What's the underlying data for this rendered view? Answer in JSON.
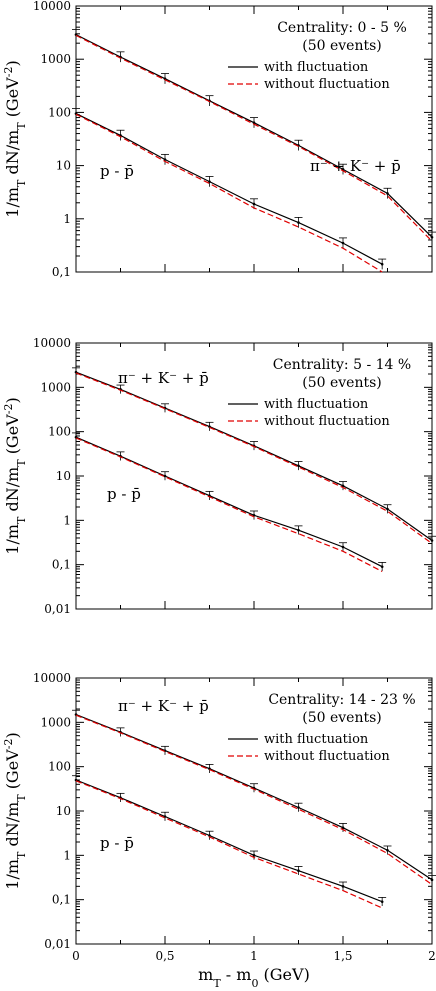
{
  "figure": {
    "xlabel": "m_T - m_0 (GeV)",
    "ylabel": "1/m_T dN/m_T (GeV^-2)",
    "legend": {
      "solid": "with fluctuation",
      "dashed": "without fluctuation"
    },
    "colors": {
      "solid": "#000000",
      "dashed": "#e00000",
      "error": "#000000"
    }
  },
  "chart_data": [
    {
      "type": "line",
      "title": "Centrality: 0 - 5 %",
      "subtitle": "(50 events)",
      "xlim": [
        0,
        2
      ],
      "ylim": [
        0.1,
        10000
      ],
      "yscale": "log",
      "xticks": [],
      "yticks": [
        "0,1",
        "1",
        "10",
        "100",
        "1000",
        "10000"
      ],
      "legend_position": "top-right",
      "series": [
        {
          "name": "with fluctuation",
          "curve": "π⁻ + K⁻ + p̄",
          "x": [
            0,
            0.25,
            0.5,
            0.75,
            1.0,
            1.25,
            1.5,
            1.75,
            2.0
          ],
          "y": [
            2900,
            1100,
            430,
            165,
            64,
            24,
            8.5,
            3.0,
            0.45
          ]
        },
        {
          "name": "without fluctuation",
          "curve": "π⁻ + K⁻ + p̄",
          "x": [
            0,
            0.25,
            0.5,
            0.75,
            1.0,
            1.25,
            1.5,
            1.75,
            2.0
          ],
          "y": [
            2800,
            1050,
            410,
            160,
            60,
            23,
            8.0,
            2.7,
            0.38
          ]
        },
        {
          "name": "with fluctuation",
          "curve": "p - p̄",
          "x": [
            0,
            0.25,
            0.5,
            0.75,
            1.0,
            1.25,
            1.5,
            1.72
          ],
          "y": [
            95,
            37,
            13,
            5.0,
            1.9,
            0.85,
            0.35,
            0.14
          ]
        },
        {
          "name": "without fluctuation",
          "curve": "p - p̄",
          "x": [
            0,
            0.25,
            0.5,
            0.75,
            1.0,
            1.25,
            1.5,
            1.72
          ],
          "y": [
            92,
            35,
            12,
            4.6,
            1.6,
            0.7,
            0.28,
            0.1
          ]
        }
      ],
      "annotations": [
        "π⁻ + K⁻ + p̄",
        "p - p̄"
      ]
    },
    {
      "type": "line",
      "title": "Centrality: 5 - 14 %",
      "subtitle": "(50 events)",
      "xlim": [
        0,
        2
      ],
      "ylim": [
        0.01,
        10000
      ],
      "yscale": "log",
      "xticks": [],
      "yticks": [
        "0,01",
        "0,1",
        "1",
        "10",
        "100",
        "1000",
        "10000"
      ],
      "legend_position": "top-right",
      "series": [
        {
          "name": "with fluctuation",
          "curve": "π⁻ + K⁻ + p̄",
          "x": [
            0,
            0.25,
            0.5,
            0.75,
            1.0,
            1.25,
            1.5,
            1.75,
            2.0
          ],
          "y": [
            2200,
            900,
            340,
            130,
            48,
            17,
            6.0,
            1.8,
            0.35
          ]
        },
        {
          "name": "without fluctuation",
          "curve": "π⁻ + K⁻ + p̄",
          "x": [
            0,
            0.25,
            0.5,
            0.75,
            1.0,
            1.25,
            1.5,
            1.75,
            2.0
          ],
          "y": [
            2100,
            860,
            330,
            125,
            46,
            16,
            5.5,
            1.6,
            0.3
          ]
        },
        {
          "name": "with fluctuation",
          "curve": "p - p̄",
          "x": [
            0,
            0.25,
            0.5,
            0.75,
            1.0,
            1.25,
            1.5,
            1.72
          ],
          "y": [
            75,
            28,
            10,
            3.6,
            1.3,
            0.6,
            0.25,
            0.09
          ]
        },
        {
          "name": "without fluctuation",
          "curve": "p - p̄",
          "x": [
            0,
            0.25,
            0.5,
            0.75,
            1.0,
            1.25,
            1.5,
            1.72
          ],
          "y": [
            72,
            27,
            9.6,
            3.4,
            1.2,
            0.5,
            0.2,
            0.07
          ]
        }
      ],
      "annotations": [
        "π⁻ + K⁻ + p̄",
        "p - p̄"
      ]
    },
    {
      "type": "line",
      "title": "Centrality: 14 - 23 %",
      "subtitle": "(50 events)",
      "xlim": [
        0,
        2
      ],
      "ylim": [
        0.01,
        10000
      ],
      "yscale": "log",
      "xticks": [
        "0",
        "0,5",
        "1",
        "1,5",
        "2"
      ],
      "yticks": [
        "0,01",
        "0,1",
        "1",
        "10",
        "100",
        "1000",
        "10000"
      ],
      "legend_position": "top-right",
      "series": [
        {
          "name": "with fluctuation",
          "curve": "π⁻ + K⁻ + p̄",
          "x": [
            0,
            0.25,
            0.5,
            0.75,
            1.0,
            1.25,
            1.5,
            1.75,
            2.0
          ],
          "y": [
            1500,
            600,
            230,
            90,
            33,
            12,
            4.2,
            1.3,
            0.28
          ]
        },
        {
          "name": "without fluctuation",
          "curve": "π⁻ + K⁻ + p̄",
          "x": [
            0,
            0.25,
            0.5,
            0.75,
            1.0,
            1.25,
            1.5,
            1.75,
            2.0
          ],
          "y": [
            1450,
            580,
            220,
            86,
            31,
            11,
            3.8,
            1.1,
            0.22
          ]
        },
        {
          "name": "with fluctuation",
          "curve": "p - p̄",
          "x": [
            0,
            0.25,
            0.5,
            0.75,
            1.0,
            1.25,
            1.5,
            1.72
          ],
          "y": [
            50,
            20,
            7.5,
            2.8,
            1.0,
            0.45,
            0.2,
            0.09
          ]
        },
        {
          "name": "without fluctuation",
          "curve": "p - p̄",
          "x": [
            0,
            0.25,
            0.5,
            0.75,
            1.0,
            1.25,
            1.5,
            1.72
          ],
          "y": [
            48,
            19,
            7.0,
            2.6,
            0.9,
            0.38,
            0.16,
            0.065
          ]
        }
      ],
      "annotations": [
        "π⁻ + K⁻ + p̄",
        "p - p̄"
      ]
    }
  ]
}
